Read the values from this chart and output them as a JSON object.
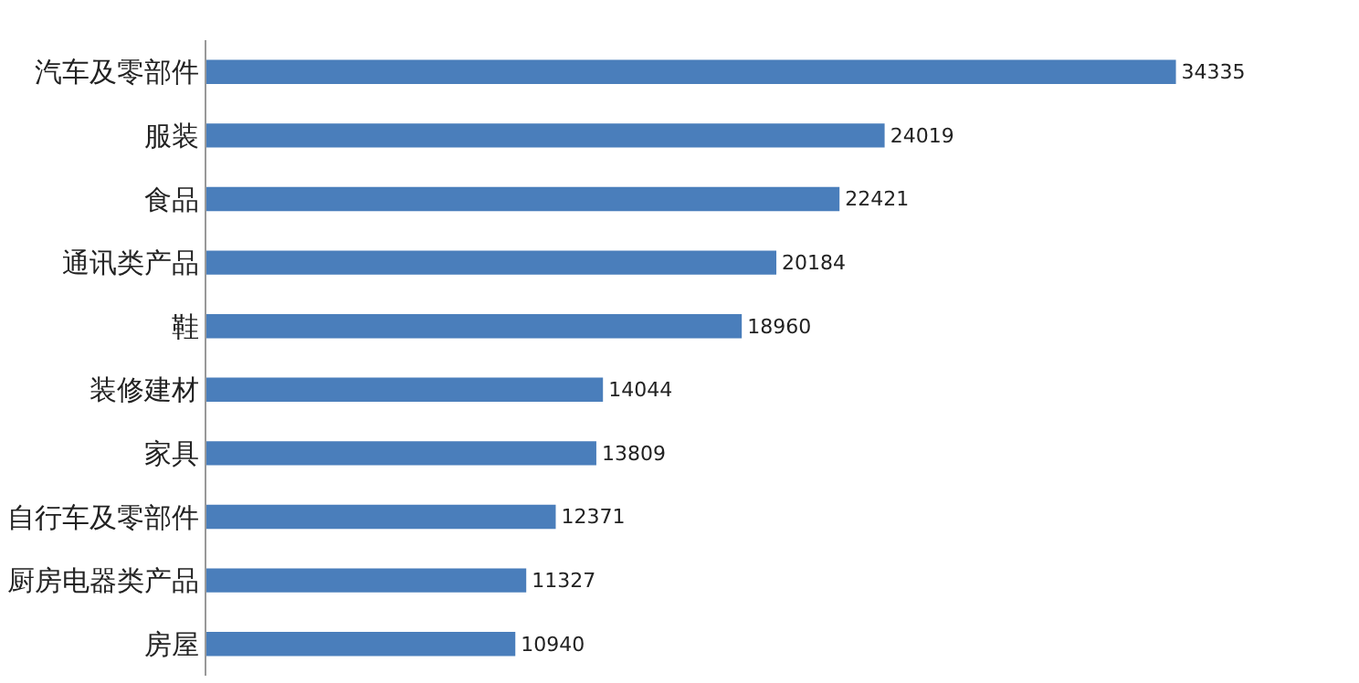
{
  "chart_data": {
    "type": "bar",
    "orientation": "horizontal",
    "data_labels": true,
    "color": "#4a7ebb",
    "categories": [
      "汽车及零部件",
      "服装",
      "食品",
      "通讯类产品",
      "鞋",
      "装修建材",
      "家具",
      "自行车及零部件",
      "厨房电器类产品",
      "房屋"
    ],
    "values": [
      34335,
      24019,
      22421,
      20184,
      18960,
      14044,
      13809,
      12371,
      11327,
      10940
    ]
  }
}
